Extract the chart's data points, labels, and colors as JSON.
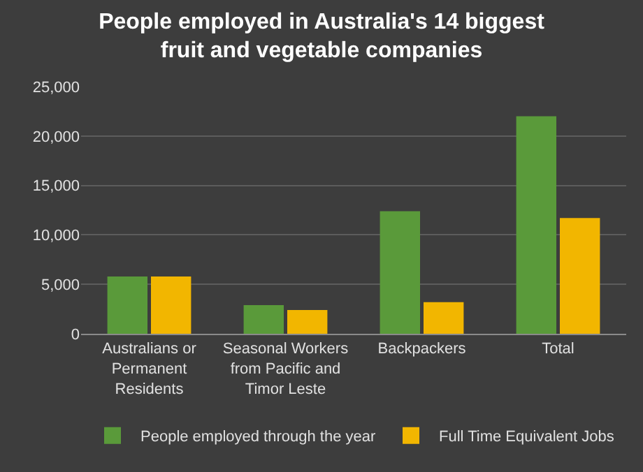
{
  "chart_data": {
    "type": "bar",
    "title": "People employed in Australia's 14 biggest fruit and vegetable companies",
    "categories": [
      "Australians or Permanent Residents",
      "Seasonal Workers from Pacific and Timor Leste",
      "Backpackers",
      "Total"
    ],
    "series": [
      {
        "name": "People employed through the year",
        "color": "#5a9a3a",
        "values": [
          5800,
          2900,
          12400,
          22000
        ]
      },
      {
        "name": "Full Time Equivalent Jobs",
        "color": "#f2b600",
        "values": [
          5800,
          2400,
          3200,
          11700
        ]
      }
    ],
    "ylim": [
      0,
      25000
    ],
    "yticks": [
      {
        "value": 0,
        "label": "0"
      },
      {
        "value": 5000,
        "label": "5,000"
      },
      {
        "value": 10000,
        "label": "10,000"
      },
      {
        "value": 15000,
        "label": "15,000"
      },
      {
        "value": 20000,
        "label": "20,000"
      },
      {
        "value": 25000,
        "label": "25,000"
      }
    ],
    "grid": "y",
    "legend": "bottom"
  }
}
